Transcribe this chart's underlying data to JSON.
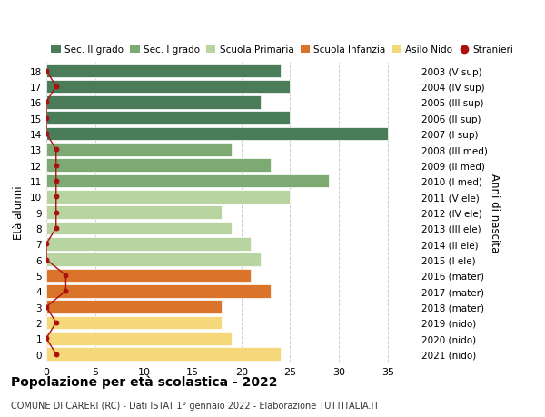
{
  "ages": [
    18,
    17,
    16,
    15,
    14,
    13,
    12,
    11,
    10,
    9,
    8,
    7,
    6,
    5,
    4,
    3,
    2,
    1,
    0
  ],
  "right_labels": [
    "2003 (V sup)",
    "2004 (IV sup)",
    "2005 (III sup)",
    "2006 (II sup)",
    "2007 (I sup)",
    "2008 (III med)",
    "2009 (II med)",
    "2010 (I med)",
    "2011 (V ele)",
    "2012 (IV ele)",
    "2013 (III ele)",
    "2014 (II ele)",
    "2015 (I ele)",
    "2016 (mater)",
    "2017 (mater)",
    "2018 (mater)",
    "2019 (nido)",
    "2020 (nido)",
    "2021 (nido)"
  ],
  "bar_values": [
    24,
    25,
    22,
    25,
    35,
    19,
    23,
    29,
    25,
    18,
    19,
    21,
    22,
    21,
    23,
    18,
    18,
    19,
    24
  ],
  "stranieri_values": [
    0,
    1,
    0,
    0,
    0,
    1,
    1,
    1,
    1,
    1,
    1,
    0,
    0,
    2,
    2,
    0,
    1,
    0,
    1
  ],
  "bar_colors": [
    "#4a7c59",
    "#4a7c59",
    "#4a7c59",
    "#4a7c59",
    "#4a7c59",
    "#7daa72",
    "#7daa72",
    "#7daa72",
    "#b8d4a0",
    "#b8d4a0",
    "#b8d4a0",
    "#b8d4a0",
    "#b8d4a0",
    "#d9742a",
    "#d9742a",
    "#d9742a",
    "#f5d87a",
    "#f5d87a",
    "#f5d87a"
  ],
  "color_sec2": "#4a7c59",
  "color_sec1": "#7daa72",
  "color_prim": "#b8d4a0",
  "color_inf": "#d9742a",
  "color_nido": "#f5d87a",
  "color_stranieri": "#aa1111",
  "ylabel_left": "Età alunni",
  "ylabel_right": "Anni di nascita",
  "title": "Popolazione per età scolastica - 2022",
  "subtitle": "COMUNE DI CARERI (RC) - Dati ISTAT 1° gennaio 2022 - Elaborazione TUTTITALIA.IT",
  "xlim": [
    0,
    38
  ],
  "xticks": [
    0,
    5,
    10,
    15,
    20,
    25,
    30,
    35
  ],
  "background_color": "#ffffff",
  "grid_color": "#cccccc"
}
